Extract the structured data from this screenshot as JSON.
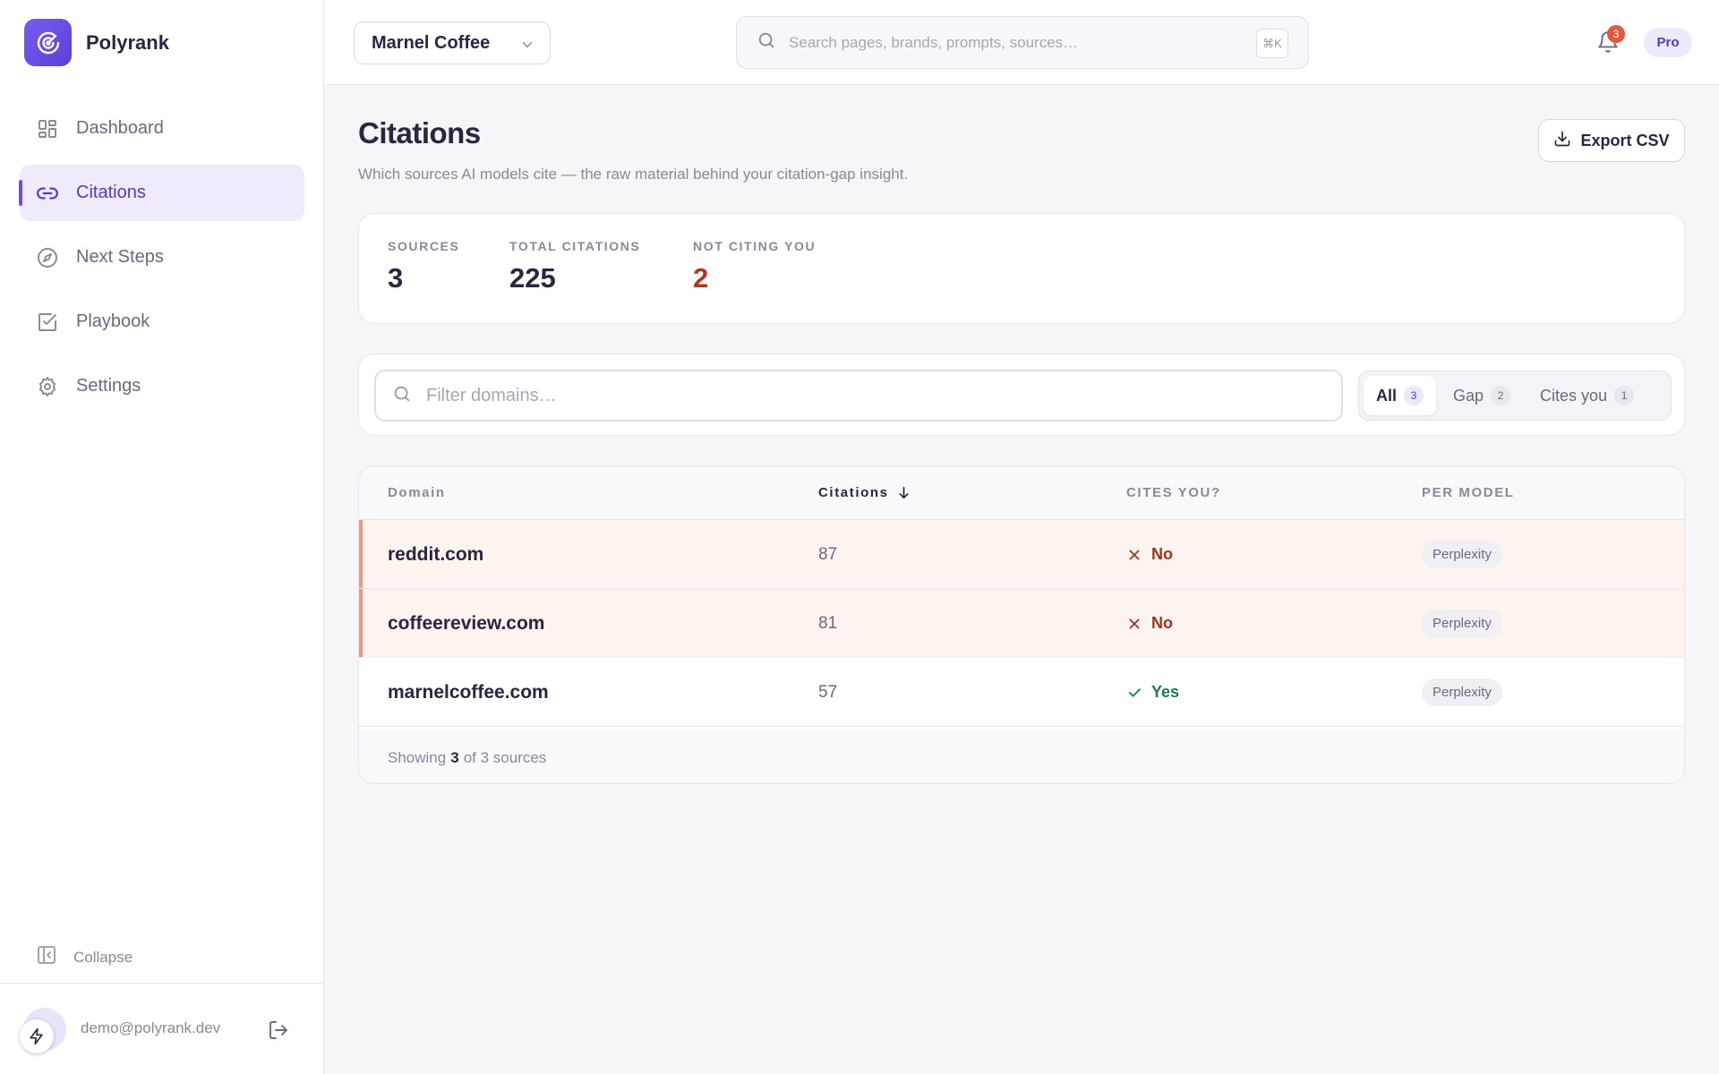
{
  "app": {
    "name": "Polyrank"
  },
  "sidebar": {
    "items": [
      {
        "label": "Dashboard",
        "icon": "grid-icon",
        "active": false
      },
      {
        "label": "Citations",
        "icon": "link-icon",
        "active": true
      },
      {
        "label": "Next Steps",
        "icon": "compass-icon",
        "active": false
      },
      {
        "label": "Playbook",
        "icon": "checkbox-icon",
        "active": false
      },
      {
        "label": "Settings",
        "icon": "gear-icon",
        "active": false
      }
    ],
    "collapse_label": "Collapse",
    "user_email": "demo@polyrank.dev"
  },
  "topbar": {
    "brand_select": "Marnel Coffee",
    "search_placeholder": "Search pages, brands, prompts, sources…",
    "search_shortcut": "⌘K",
    "notifications_count": "3",
    "plan": "Pro"
  },
  "page": {
    "title": "Citations",
    "subtitle": "Which sources AI models cite — the raw material behind your citation-gap insight.",
    "export_label": "Export CSV"
  },
  "stats": [
    {
      "label": "SOURCES",
      "value": "3"
    },
    {
      "label": "TOTAL CITATIONS",
      "value": "225"
    },
    {
      "label": "NOT CITING YOU",
      "value": "2"
    }
  ],
  "filters": {
    "placeholder": "Filter domains…",
    "segments": [
      {
        "label": "All",
        "count": "3",
        "active": true
      },
      {
        "label": "Gap",
        "count": "2",
        "active": false
      },
      {
        "label": "Cites you",
        "count": "1",
        "active": false
      }
    ]
  },
  "table": {
    "headers": {
      "domain": "Domain",
      "citations": "Citations",
      "cites_you": "CITES YOU?",
      "per_model": "PER MODEL"
    },
    "rows": [
      {
        "domain": "reddit.com",
        "citations": "87",
        "cites_you": "No",
        "model": "Perplexity"
      },
      {
        "domain": "coffeereview.com",
        "citations": "81",
        "cites_you": "No",
        "model": "Perplexity"
      },
      {
        "domain": "marnelcoffee.com",
        "citations": "57",
        "cites_you": "Yes",
        "model": "Perplexity"
      }
    ],
    "footer": {
      "prefix": "Showing",
      "shown": "3",
      "suffix": "of 3 sources"
    }
  },
  "colors": {
    "accent": "#6a4fe0",
    "danger": "#b3361d",
    "success": "#1f7a52",
    "gap_row": "#fdf3ef"
  }
}
